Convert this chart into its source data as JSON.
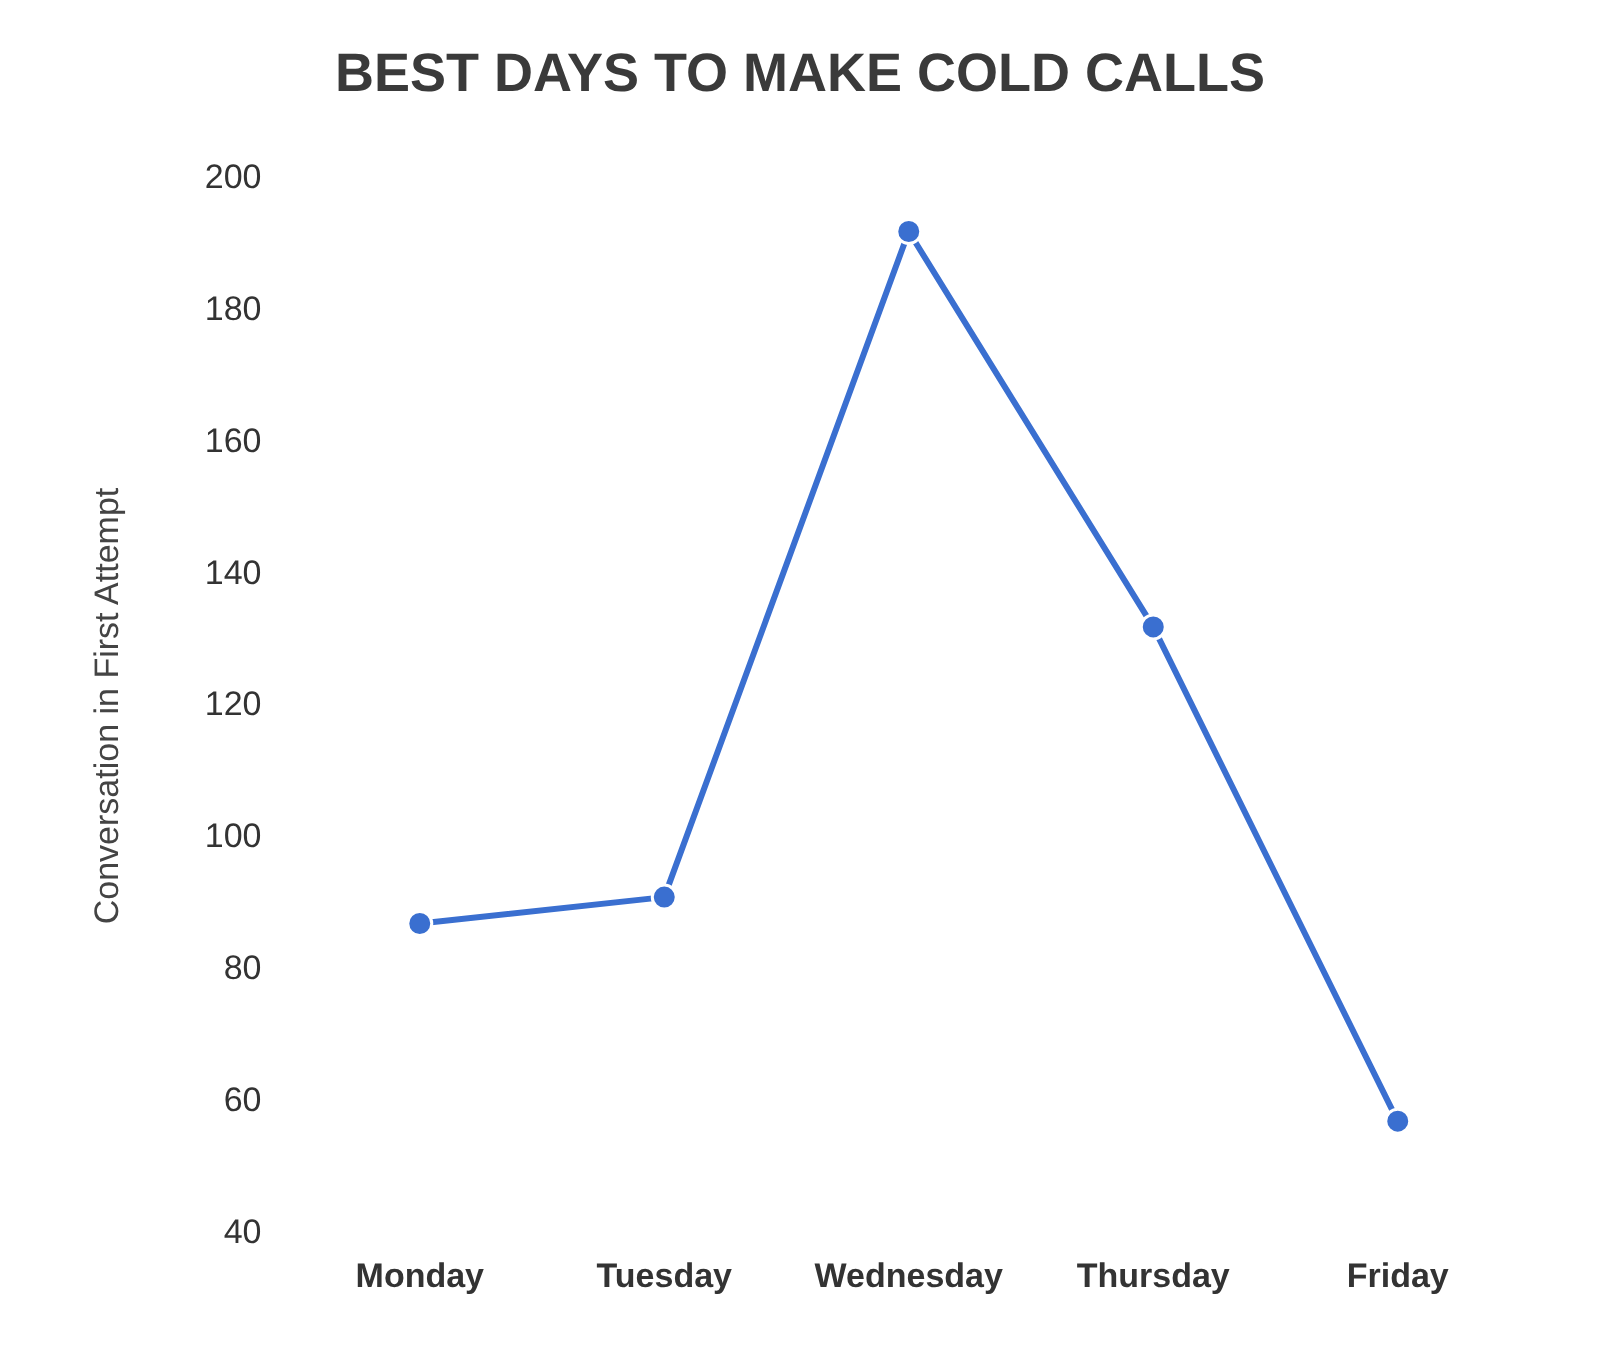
{
  "chart_data": {
    "type": "line",
    "title": "BEST DAYS TO MAKE COLD CALLS",
    "ylabel": "Conversation in First Attempt",
    "categories": [
      "Monday",
      "Tuesday",
      "Wednesday",
      "Thursday",
      "Friday"
    ],
    "series": [
      {
        "color": "#3a6fd0",
        "values": [
          87,
          91,
          192,
          132,
          57
        ]
      }
    ],
    "ylim": [
      40,
      200
    ],
    "yticks": [
      40,
      60,
      80,
      100,
      120,
      140,
      160,
      180,
      200
    ],
    "grid": false,
    "legend": false,
    "marker": "circle",
    "line_style": "solid"
  }
}
